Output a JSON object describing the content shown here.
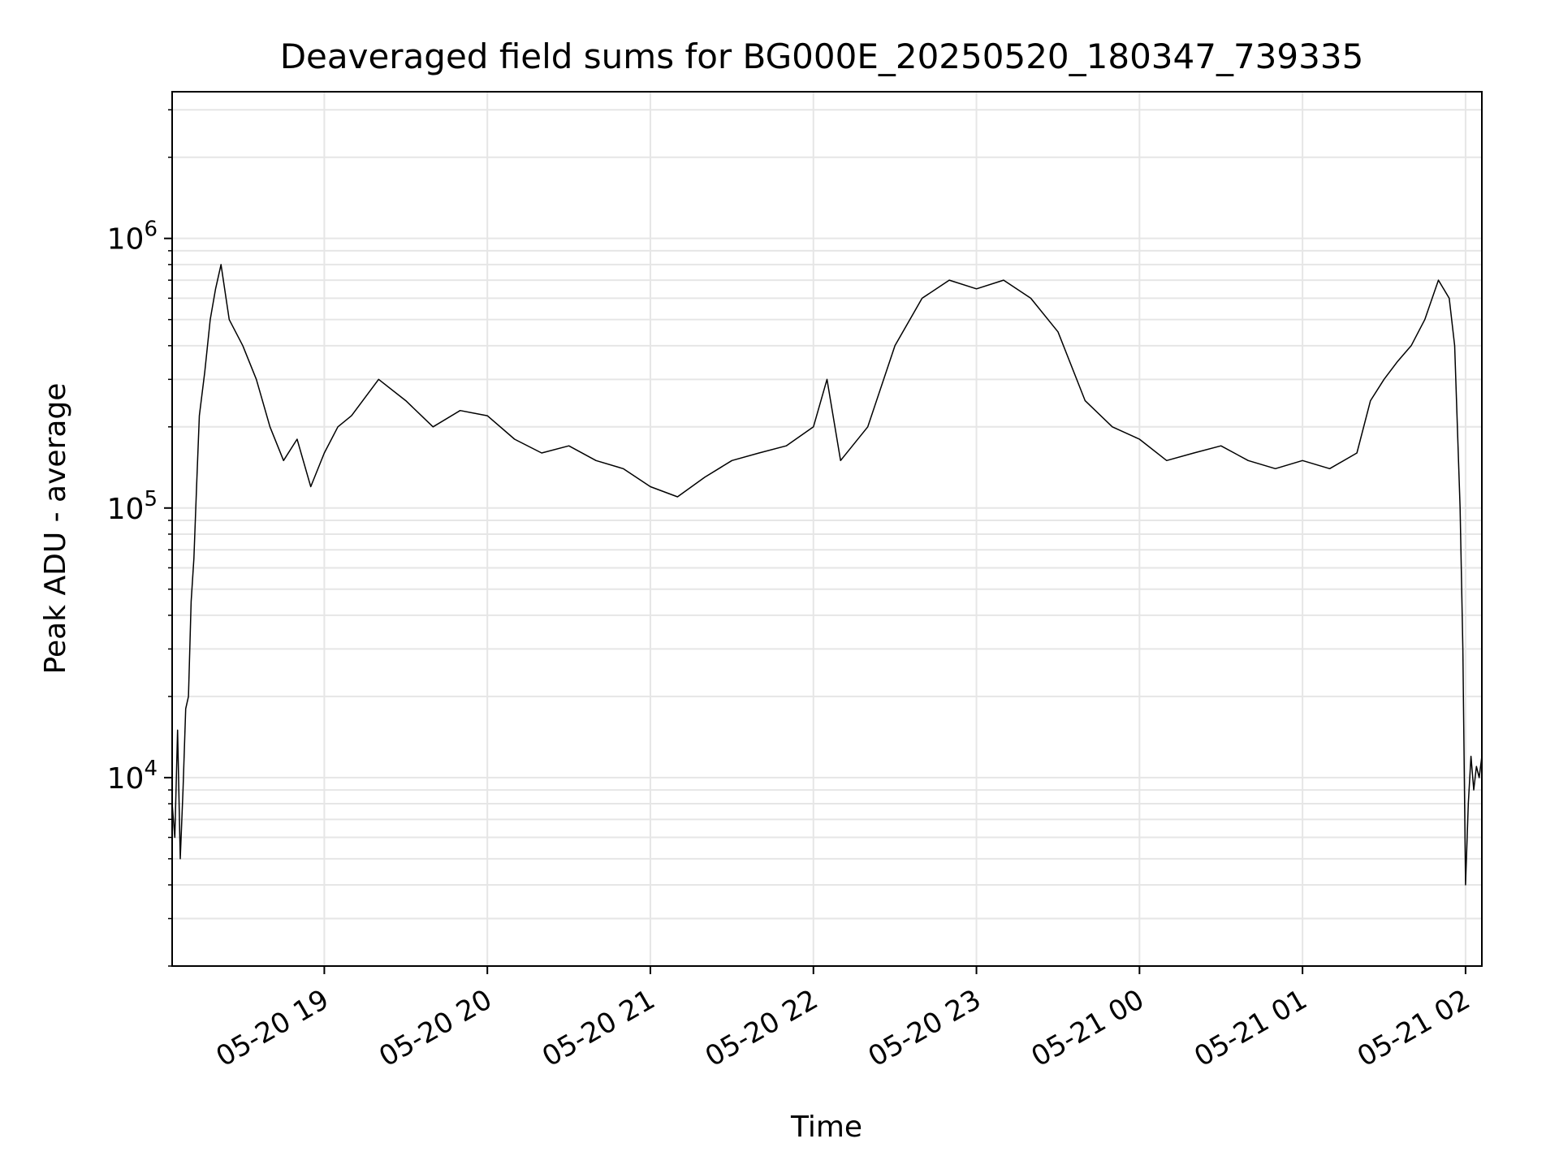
{
  "chart_data": {
    "type": "line",
    "title": "Deaveraged field sums for BG000E_20250520_180347_739335",
    "xlabel": "Time",
    "ylabel": "Peak ADU - average",
    "y_scale": "log",
    "grid": true,
    "legend": "none",
    "line_color": "#000000",
    "grid_color": "#e6e6e6",
    "xlim": [
      "2025-05-20 18:04",
      "2025-05-21 02:06"
    ],
    "ylim": [
      2000,
      3500000
    ],
    "x_ticks": [
      {
        "value": "2025-05-20 19:00",
        "label": "05-20 19"
      },
      {
        "value": "2025-05-20 20:00",
        "label": "05-20 20"
      },
      {
        "value": "2025-05-20 21:00",
        "label": "05-20 21"
      },
      {
        "value": "2025-05-20 22:00",
        "label": "05-20 22"
      },
      {
        "value": "2025-05-20 23:00",
        "label": "05-20 23"
      },
      {
        "value": "2025-05-21 00:00",
        "label": "05-21 00"
      },
      {
        "value": "2025-05-21 01:00",
        "label": "05-21 01"
      },
      {
        "value": "2025-05-21 02:00",
        "label": "05-21 02"
      }
    ],
    "y_ticks": [
      {
        "value": 10000,
        "base": "10",
        "exp": "4"
      },
      {
        "value": 100000,
        "base": "10",
        "exp": "5"
      },
      {
        "value": 1000000,
        "base": "10",
        "exp": "6"
      }
    ],
    "series": [
      {
        "x": [
          "2025-05-20 18:04",
          "2025-05-20 18:05",
          "2025-05-20 18:06",
          "2025-05-20 18:07",
          "2025-05-20 18:08",
          "2025-05-20 18:09",
          "2025-05-20 18:10",
          "2025-05-20 18:11",
          "2025-05-20 18:12",
          "2025-05-20 18:13",
          "2025-05-20 18:14",
          "2025-05-20 18:16",
          "2025-05-20 18:18",
          "2025-05-20 18:20",
          "2025-05-20 18:22",
          "2025-05-20 18:25",
          "2025-05-20 18:30",
          "2025-05-20 18:35",
          "2025-05-20 18:40",
          "2025-05-20 18:45",
          "2025-05-20 18:50",
          "2025-05-20 18:55",
          "2025-05-20 19:00",
          "2025-05-20 19:05",
          "2025-05-20 19:10",
          "2025-05-20 19:20",
          "2025-05-20 19:30",
          "2025-05-20 19:40",
          "2025-05-20 19:50",
          "2025-05-20 20:00",
          "2025-05-20 20:10",
          "2025-05-20 20:20",
          "2025-05-20 20:30",
          "2025-05-20 20:40",
          "2025-05-20 20:50",
          "2025-05-20 21:00",
          "2025-05-20 21:10",
          "2025-05-20 21:20",
          "2025-05-20 21:30",
          "2025-05-20 21:40",
          "2025-05-20 21:50",
          "2025-05-20 22:00",
          "2025-05-20 22:05",
          "2025-05-20 22:10",
          "2025-05-20 22:20",
          "2025-05-20 22:30",
          "2025-05-20 22:40",
          "2025-05-20 22:50",
          "2025-05-20 23:00",
          "2025-05-20 23:10",
          "2025-05-20 23:20",
          "2025-05-20 23:30",
          "2025-05-20 23:40",
          "2025-05-20 23:50",
          "2025-05-21 00:00",
          "2025-05-21 00:10",
          "2025-05-21 00:20",
          "2025-05-21 00:30",
          "2025-05-21 00:40",
          "2025-05-21 00:50",
          "2025-05-21 01:00",
          "2025-05-21 01:10",
          "2025-05-21 01:20",
          "2025-05-21 01:25",
          "2025-05-21 01:30",
          "2025-05-21 01:35",
          "2025-05-21 01:40",
          "2025-05-21 01:45",
          "2025-05-21 01:50",
          "2025-05-21 01:54",
          "2025-05-21 01:56",
          "2025-05-21 01:58",
          "2025-05-21 01:59",
          "2025-05-21 02:00",
          "2025-05-21 02:01",
          "2025-05-21 02:02",
          "2025-05-21 02:03",
          "2025-05-21 02:04",
          "2025-05-21 02:05",
          "2025-05-21 02:06"
        ],
        "y": [
          8000,
          6000,
          15000,
          5000,
          9000,
          18000,
          20000,
          45000,
          65000,
          120000,
          220000,
          320000,
          500000,
          650000,
          800000,
          500000,
          400000,
          300000,
          200000,
          150000,
          180000,
          120000,
          160000,
          200000,
          220000,
          300000,
          250000,
          200000,
          230000,
          220000,
          180000,
          160000,
          170000,
          150000,
          140000,
          120000,
          110000,
          130000,
          150000,
          160000,
          170000,
          200000,
          300000,
          150000,
          200000,
          400000,
          600000,
          700000,
          650000,
          700000,
          600000,
          450000,
          250000,
          200000,
          180000,
          150000,
          160000,
          170000,
          150000,
          140000,
          150000,
          140000,
          160000,
          250000,
          300000,
          350000,
          400000,
          500000,
          700000,
          600000,
          400000,
          100000,
          30000,
          4000,
          8000,
          12000,
          9000,
          11000,
          10000,
          12000
        ]
      }
    ]
  }
}
